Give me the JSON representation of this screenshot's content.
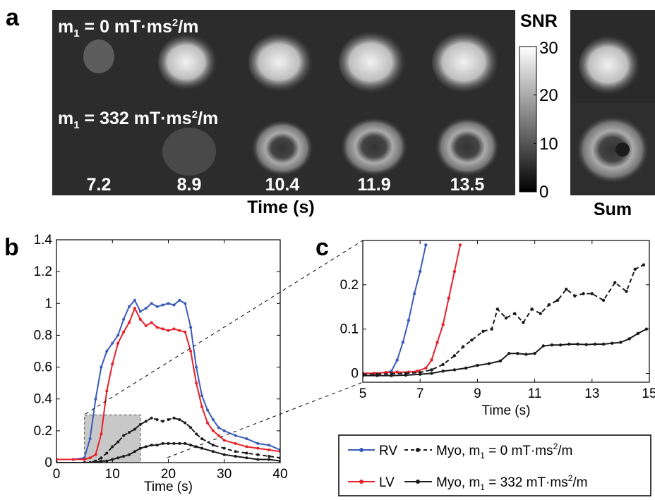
{
  "panel_a": {
    "letter": "a",
    "row1_label": "m",
    "row1_sub": "1",
    "row1_rest": " = 0 mT·ms",
    "row1_sup": "2",
    "row1_end": "/m",
    "row2_label": "m",
    "row2_sub": "1",
    "row2_rest": " = 332 mT·ms",
    "row2_sup": "2",
    "row2_end": "/m",
    "frame_times": [
      "7.2",
      "8.9",
      "10.4",
      "11.9",
      "13.5"
    ],
    "xlabel": "Time (s)",
    "colorbar_title": "SNR",
    "colorbar_ticks": [
      "30",
      "20",
      "10",
      "0"
    ],
    "colorbar_range": [
      0,
      30
    ],
    "sum_label": "Sum"
  },
  "panel_b_letter": "b",
  "panel_c_letter": "c",
  "legend": {
    "rv": "RV",
    "lv": "LV",
    "myo0": "Myo, m",
    "myo0_sub": "1",
    "myo0_rest": " = 0 mT·ms",
    "myo0_sup": "2",
    "myo0_end": "/m",
    "myo332": "Myo, m",
    "myo332_sub": "1",
    "myo332_rest": " = 332 mT·ms",
    "myo332_sup": "2",
    "myo332_end": "/m"
  },
  "colors": {
    "rv": "#3a5cb8",
    "lv": "#e8202a",
    "myo": "#1a1a1a",
    "highlight": "#c8c8c8"
  },
  "chart_data": [
    {
      "type": "line",
      "panel": "b",
      "xlabel": "Time (s)",
      "ylabel": "",
      "xlim": [
        0,
        40
      ],
      "ylim": [
        0,
        1.4
      ],
      "xticks": [
        "0",
        "10",
        "20",
        "30",
        "40"
      ],
      "yticks": [
        "0",
        "0.2",
        "0.4",
        "0.6",
        "0.8",
        "1",
        "1.2",
        "1.4"
      ],
      "highlight_region": {
        "x": [
          5,
          15
        ],
        "y": [
          0,
          0.3
        ]
      },
      "series": [
        {
          "name": "RV",
          "color": "#3a5cb8",
          "style": "solid",
          "x": [
            0,
            3,
            5,
            6,
            7,
            8,
            9,
            10,
            11,
            12,
            13,
            14,
            15,
            16,
            17,
            18,
            19,
            20,
            21,
            22,
            23,
            24,
            25,
            26,
            27,
            28,
            29,
            30,
            32,
            34,
            36,
            38,
            40
          ],
          "y": [
            0.02,
            0.02,
            0.03,
            0.15,
            0.4,
            0.6,
            0.7,
            0.75,
            0.8,
            0.9,
            0.98,
            1.02,
            0.95,
            0.97,
            1.0,
            0.98,
            0.99,
            1.0,
            0.99,
            1.02,
            1.0,
            0.85,
            0.6,
            0.42,
            0.33,
            0.27,
            0.22,
            0.2,
            0.17,
            0.15,
            0.12,
            0.11,
            0.08
          ]
        },
        {
          "name": "LV",
          "color": "#e8202a",
          "style": "solid",
          "x": [
            0,
            3,
            5,
            6,
            7,
            8,
            9,
            10,
            11,
            12,
            13,
            14,
            15,
            16,
            17,
            18,
            19,
            20,
            21,
            22,
            23,
            24,
            25,
            26,
            27,
            28,
            29,
            30,
            32,
            34,
            36,
            38,
            40
          ],
          "y": [
            0.02,
            0.02,
            0.02,
            0.03,
            0.05,
            0.18,
            0.45,
            0.62,
            0.75,
            0.82,
            0.88,
            0.97,
            0.9,
            0.86,
            0.88,
            0.85,
            0.84,
            0.83,
            0.84,
            0.83,
            0.82,
            0.7,
            0.5,
            0.35,
            0.25,
            0.2,
            0.17,
            0.14,
            0.12,
            0.1,
            0.09,
            0.08,
            0.07
          ]
        },
        {
          "name": "Myo, m1 = 0 mT·ms2/m",
          "color": "#1a1a1a",
          "style": "dashed",
          "x": [
            0,
            5,
            6,
            7,
            8,
            9,
            10,
            11,
            12,
            13,
            14,
            15,
            16,
            17,
            18,
            19,
            20,
            21,
            22,
            23,
            24,
            25,
            26,
            28,
            30,
            32,
            34,
            36,
            38,
            40
          ],
          "y": [
            0.0,
            0.0,
            0.0,
            0.01,
            0.03,
            0.06,
            0.1,
            0.13,
            0.17,
            0.19,
            0.21,
            0.24,
            0.26,
            0.28,
            0.27,
            0.26,
            0.27,
            0.28,
            0.27,
            0.25,
            0.22,
            0.18,
            0.15,
            0.11,
            0.09,
            0.07,
            0.06,
            0.05,
            0.04,
            0.03
          ]
        },
        {
          "name": "Myo, m1 = 332 mT·ms2/m",
          "color": "#1a1a1a",
          "style": "solid",
          "x": [
            0,
            5,
            6,
            7,
            8,
            9,
            10,
            11,
            12,
            13,
            14,
            15,
            16,
            17,
            18,
            19,
            20,
            21,
            22,
            23,
            24,
            25,
            26,
            28,
            30,
            32,
            34,
            36,
            38,
            40
          ],
          "y": [
            0.0,
            0.0,
            0.0,
            0.0,
            0.01,
            0.01,
            0.02,
            0.03,
            0.04,
            0.05,
            0.07,
            0.09,
            0.1,
            0.11,
            0.11,
            0.12,
            0.12,
            0.12,
            0.12,
            0.12,
            0.11,
            0.1,
            0.09,
            0.07,
            0.05,
            0.04,
            0.03,
            0.02,
            0.02,
            0.01
          ]
        }
      ]
    },
    {
      "type": "line",
      "panel": "c",
      "xlabel": "Time (s)",
      "ylabel": "",
      "xlim": [
        5,
        15
      ],
      "ylim": [
        -0.02,
        0.3
      ],
      "xticks": [
        "5",
        "7",
        "9",
        "11",
        "13",
        "15"
      ],
      "yticks": [
        "0",
        "0.1",
        "0.2"
      ],
      "series": [
        {
          "name": "RV",
          "color": "#3a5cb8",
          "style": "solid",
          "x": [
            5.0,
            5.4,
            5.8,
            6.0,
            6.2,
            6.4,
            6.6,
            6.8,
            7.0,
            7.2
          ],
          "y": [
            0.0,
            0.0,
            0.002,
            0.005,
            0.03,
            0.07,
            0.12,
            0.18,
            0.23,
            0.29
          ]
        },
        {
          "name": "LV",
          "color": "#e8202a",
          "style": "solid",
          "x": [
            5.0,
            5.4,
            5.8,
            6.2,
            6.6,
            6.9,
            7.2,
            7.4,
            7.6,
            7.8,
            8.0,
            8.2,
            8.4
          ],
          "y": [
            0.0,
            0.0,
            0.002,
            0.003,
            0.003,
            0.005,
            0.012,
            0.03,
            0.07,
            0.11,
            0.17,
            0.23,
            0.29
          ]
        },
        {
          "name": "Myo, m1 = 0 mT·ms2/m",
          "color": "#1a1a1a",
          "style": "dashed",
          "x": [
            5.0,
            5.5,
            6.0,
            6.5,
            7.0,
            7.4,
            7.8,
            8.2,
            8.5,
            8.8,
            9.2,
            9.5,
            9.7,
            10.0,
            10.3,
            10.6,
            10.9,
            11.2,
            11.5,
            11.8,
            12.1,
            12.4,
            12.7,
            13.0,
            13.4,
            13.8,
            14.2,
            14.5,
            14.8
          ],
          "y": [
            -0.002,
            -0.002,
            -0.001,
            0.0,
            0.002,
            0.008,
            0.02,
            0.04,
            0.06,
            0.075,
            0.095,
            0.1,
            0.145,
            0.125,
            0.135,
            0.115,
            0.145,
            0.135,
            0.155,
            0.165,
            0.19,
            0.175,
            0.18,
            0.18,
            0.165,
            0.205,
            0.185,
            0.235,
            0.245
          ]
        },
        {
          "name": "Myo, m1 = 332 mT·ms2/m",
          "color": "#1a1a1a",
          "style": "solid",
          "x": [
            5.0,
            5.5,
            6.0,
            6.5,
            7.0,
            7.4,
            7.8,
            8.2,
            8.6,
            9.0,
            9.4,
            9.8,
            10.1,
            10.4,
            10.7,
            11.0,
            11.3,
            11.6,
            11.9,
            12.2,
            12.5,
            12.8,
            13.1,
            13.4,
            13.7,
            14.0,
            14.3,
            14.6,
            14.9
          ],
          "y": [
            -0.005,
            -0.005,
            -0.005,
            -0.004,
            -0.002,
            0.0,
            0.005,
            0.008,
            0.012,
            0.018,
            0.022,
            0.028,
            0.045,
            0.045,
            0.043,
            0.045,
            0.062,
            0.064,
            0.064,
            0.066,
            0.066,
            0.065,
            0.066,
            0.066,
            0.068,
            0.07,
            0.078,
            0.09,
            0.1
          ]
        }
      ]
    }
  ]
}
